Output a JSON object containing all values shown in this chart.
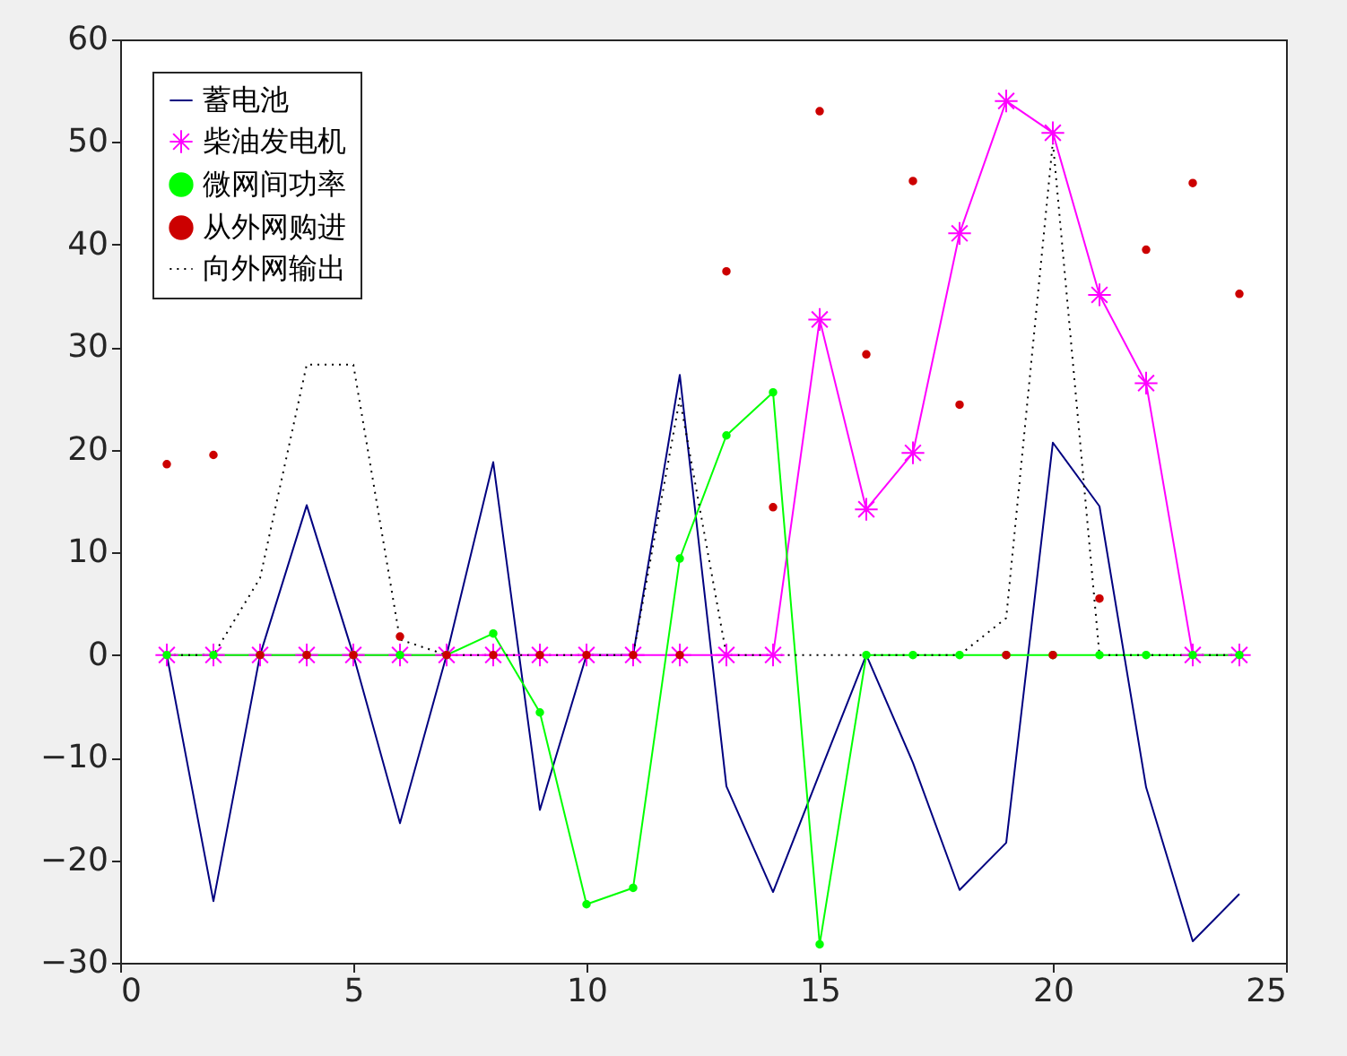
{
  "chart_data": {
    "type": "line",
    "x": [
      1,
      2,
      3,
      4,
      5,
      6,
      7,
      8,
      9,
      10,
      11,
      12,
      13,
      14,
      15,
      16,
      17,
      18,
      19,
      20,
      21,
      22,
      23,
      24
    ],
    "xlim": [
      0,
      25
    ],
    "xticks": [
      0,
      5,
      10,
      15,
      20,
      25
    ],
    "ylim": [
      -30,
      60
    ],
    "yticks": [
      -30,
      -20,
      -10,
      0,
      10,
      20,
      30,
      40,
      50,
      60
    ],
    "grid": false,
    "legend": "top left",
    "series": [
      {
        "name": "蓄电池",
        "color": "#000080",
        "marker": "none",
        "line_style": "solid",
        "values": [
          0,
          -24,
          0,
          14.6,
          0,
          -16.4,
          0,
          18.8,
          -15.1,
          0,
          0,
          27.3,
          -12.8,
          -23.1,
          -11.5,
          0,
          -10.5,
          -22.9,
          -18.3,
          20.7,
          14.5,
          -12.9,
          -27.9,
          -23.3
        ]
      },
      {
        "name": "柴油发电机",
        "color": "#ff00ff",
        "marker": "cross",
        "line_style": "solid",
        "values": [
          0,
          0,
          0,
          0,
          0,
          0,
          0,
          0,
          0,
          0,
          0,
          0,
          0,
          0,
          32.7,
          14.2,
          19.7,
          41.1,
          54,
          50.9,
          35.1,
          26.5,
          0,
          0
        ]
      },
      {
        "name": "微网间功率",
        "color": "#00ff00",
        "marker": "circle",
        "line_style": "solid",
        "values": [
          0,
          0,
          0,
          0,
          0,
          0,
          0,
          2.1,
          -5.6,
          -24.3,
          -22.7,
          9.4,
          21.4,
          25.6,
          -28.2,
          0,
          0,
          0,
          0,
          0,
          0,
          0,
          0,
          0
        ]
      },
      {
        "name": "从外网购进",
        "color": "#cc0000",
        "type": "scatter",
        "marker": "circle",
        "values": [
          18.6,
          19.5,
          0,
          0,
          0,
          1.8,
          0,
          0,
          0,
          0,
          0,
          0,
          37.4,
          14.4,
          53,
          29.3,
          46.2,
          24.4,
          0,
          0,
          5.5,
          39.5,
          46,
          35.2
        ]
      },
      {
        "name": "向外网输出",
        "color": "#000000",
        "marker": "none",
        "line_style": "dotted",
        "values": [
          0,
          0,
          7.5,
          28.3,
          28.3,
          1.5,
          0,
          0,
          0,
          0,
          0,
          25,
          0,
          0,
          0,
          0,
          0,
          0,
          3.6,
          50,
          0,
          0,
          0,
          0
        ]
      }
    ]
  }
}
